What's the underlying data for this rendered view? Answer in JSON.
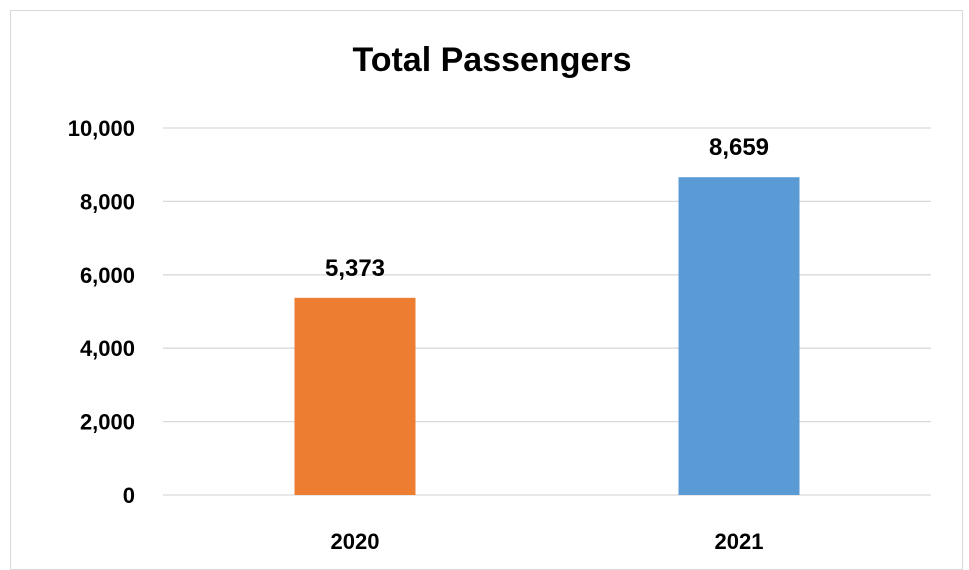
{
  "chart_data": {
    "type": "bar",
    "title": "Total Passengers",
    "categories": [
      "2020",
      "2021"
    ],
    "values": [
      5373,
      8659
    ],
    "value_labels": [
      "5,373",
      "8,659"
    ],
    "bar_colors": [
      "#ED7D31",
      "#5B9BD5"
    ],
    "ylim": [
      0,
      10000
    ],
    "yticks": [
      0,
      2000,
      4000,
      6000,
      8000,
      10000
    ],
    "ytick_labels": [
      "0",
      "2,000",
      "4,000",
      "6,000",
      "8,000",
      "10,000"
    ],
    "grid": true,
    "legend": "none",
    "xlabel": "",
    "ylabel": ""
  }
}
